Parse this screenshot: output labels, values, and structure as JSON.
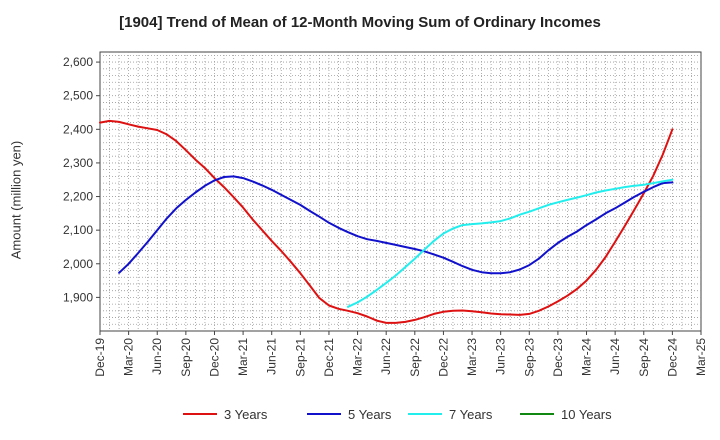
{
  "chart_data": {
    "type": "line",
    "title": "[1904]  Trend of Mean of 12-Month Moving Sum of Ordinary Incomes",
    "xlabel": "",
    "ylabel": "Amount (million yen)",
    "ylim": [
      1800,
      2630
    ],
    "yticks": [
      "1,900",
      "2,000",
      "2,100",
      "2,200",
      "2,300",
      "2,400",
      "2,500",
      "2,600"
    ],
    "ytick_values": [
      1900,
      2000,
      2100,
      2200,
      2300,
      2400,
      2500,
      2600
    ],
    "x_tick_labels": [
      "Dec-19",
      "Mar-20",
      "Jun-20",
      "Sep-20",
      "Dec-20",
      "Mar-21",
      "Jun-21",
      "Sep-21",
      "Dec-21",
      "Mar-22",
      "Jun-22",
      "Sep-22",
      "Dec-22",
      "Mar-23",
      "Jun-23",
      "Sep-23",
      "Dec-23",
      "Mar-24",
      "Jun-24",
      "Sep-24",
      "Dec-24",
      "Mar-25"
    ],
    "x_start": "Dec-19",
    "x_unit": "months since Dec-19",
    "xlim": [
      0,
      63
    ],
    "grid": true,
    "legend_position": "bottom",
    "series": [
      {
        "name": "3 Years",
        "color": "#dd1111",
        "x": [
          0,
          1,
          2,
          3,
          4,
          5,
          6,
          7,
          8,
          9,
          10,
          11,
          12,
          13,
          14,
          15,
          16,
          17,
          18,
          19,
          20,
          21,
          22,
          23,
          24,
          25,
          26,
          27,
          28,
          29,
          30,
          31,
          32,
          33,
          34,
          35,
          36,
          37,
          38,
          39,
          40,
          41,
          42,
          43,
          44,
          45,
          46,
          47,
          48,
          49,
          50,
          51,
          52,
          53,
          54,
          55,
          56,
          57,
          58,
          59,
          60
        ],
        "values": [
          2420,
          2425,
          2422,
          2415,
          2408,
          2403,
          2398,
          2385,
          2365,
          2338,
          2310,
          2285,
          2255,
          2228,
          2198,
          2167,
          2132,
          2100,
          2068,
          2038,
          2006,
          1972,
          1935,
          1898,
          1876,
          1866,
          1860,
          1853,
          1843,
          1831,
          1824,
          1824,
          1827,
          1833,
          1841,
          1851,
          1857,
          1860,
          1861,
          1859,
          1856,
          1852,
          1850,
          1849,
          1848,
          1851,
          1860,
          1873,
          1888,
          1905,
          1925,
          1950,
          1982,
          2020,
          2065,
          2112,
          2160,
          2210,
          2262,
          2325,
          2400
        ]
      },
      {
        "name": "5 Years",
        "color": "#1111cc",
        "x": [
          2,
          3,
          4,
          5,
          6,
          7,
          8,
          9,
          10,
          11,
          12,
          13,
          14,
          15,
          16,
          17,
          18,
          19,
          20,
          21,
          22,
          23,
          24,
          25,
          26,
          27,
          28,
          29,
          30,
          31,
          32,
          33,
          34,
          35,
          36,
          37,
          38,
          39,
          40,
          41,
          42,
          43,
          44,
          45,
          46,
          47,
          48,
          49,
          50,
          51,
          52,
          53,
          54,
          55,
          56,
          57,
          58,
          59,
          60
        ],
        "values": [
          1973,
          2000,
          2032,
          2065,
          2100,
          2135,
          2165,
          2190,
          2212,
          2232,
          2248,
          2258,
          2260,
          2255,
          2245,
          2233,
          2220,
          2205,
          2190,
          2175,
          2157,
          2140,
          2122,
          2107,
          2094,
          2082,
          2073,
          2068,
          2062,
          2056,
          2050,
          2044,
          2037,
          2028,
          2018,
          2006,
          1993,
          1982,
          1975,
          1972,
          1972,
          1975,
          1983,
          1996,
          2015,
          2040,
          2062,
          2080,
          2096,
          2115,
          2132,
          2150,
          2165,
          2182,
          2199,
          2214,
          2228,
          2240,
          2242
        ]
      },
      {
        "name": "7 Years",
        "color": "#22eeee",
        "x": [
          26,
          27,
          28,
          29,
          30,
          31,
          32,
          33,
          34,
          35,
          36,
          37,
          38,
          39,
          40,
          41,
          42,
          43,
          44,
          45,
          46,
          47,
          48,
          49,
          50,
          51,
          52,
          53,
          54,
          55,
          56,
          57,
          58,
          59,
          60
        ],
        "values": [
          1872,
          1885,
          1902,
          1922,
          1943,
          1965,
          1990,
          2015,
          2042,
          2068,
          2090,
          2105,
          2115,
          2118,
          2120,
          2123,
          2127,
          2135,
          2146,
          2155,
          2165,
          2175,
          2183,
          2190,
          2197,
          2204,
          2212,
          2218,
          2223,
          2228,
          2232,
          2235,
          2240,
          2245,
          2250
        ]
      },
      {
        "name": "10 Years",
        "color": "#118811",
        "x": [],
        "values": []
      }
    ]
  }
}
